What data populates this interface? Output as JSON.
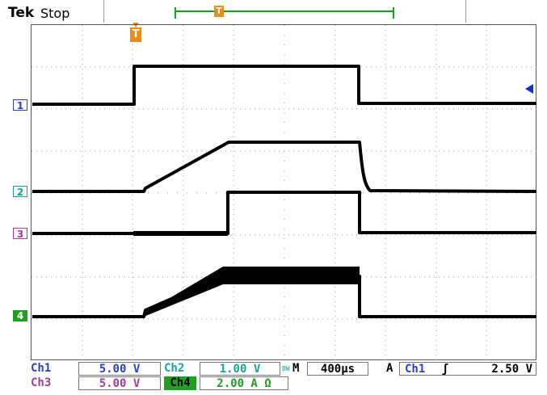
{
  "header": {
    "brand": "Tek",
    "state": "Stop",
    "trigger_marker": "T"
  },
  "channels": {
    "ch1": {
      "marker": "1",
      "color": "#2b3dd6"
    },
    "ch2": {
      "marker": "2",
      "color": "#15a39c"
    },
    "ch3": {
      "marker": "3",
      "color": "#a43b9f"
    },
    "ch4": {
      "marker": "4",
      "color": "#1fa11f"
    }
  },
  "status": {
    "ch1_label": "Ch1",
    "ch1_scale": "5.00 V",
    "ch2_label": "Ch2",
    "ch2_scale": "1.00 V",
    "ch3_label": "Ch3",
    "ch3_scale": "5.00 V",
    "ch4_label": "Ch4",
    "ch4_scale": "2.00 A Ω",
    "bw_limit": "BW",
    "timebase_label": "M",
    "timebase": "400µs",
    "trigger_mode": "A",
    "trigger_source": "Ch1",
    "trigger_slope": "ʃ",
    "trigger_level": "2.50 V"
  },
  "colors": {
    "trace": "#000000",
    "grid": "#9a9a9a",
    "trigger": "#ee8a1a",
    "record": "#19a019",
    "level": "#0a2fd0"
  }
}
